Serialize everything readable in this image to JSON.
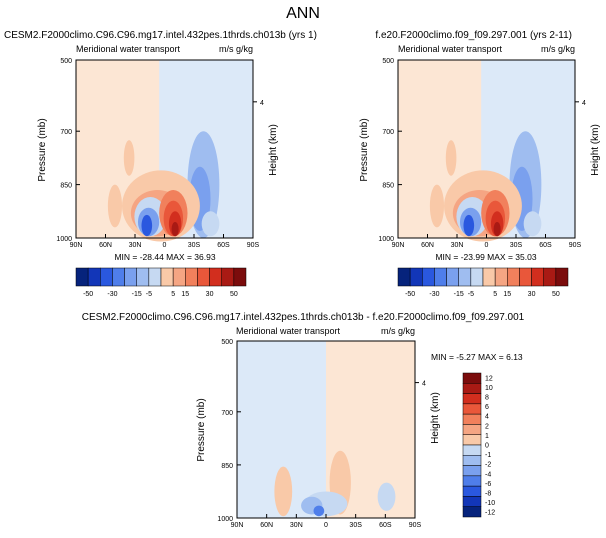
{
  "page_title": "ANN",
  "colors": {
    "bg_warm": "#fce6d4",
    "bg_cool": "#dce9f8",
    "red_scale": [
      "#f9c9a8",
      "#f5a583",
      "#f1805c",
      "#e9573a",
      "#d22e1e",
      "#a91a14",
      "#7b0c0c"
    ],
    "blue_scale": [
      "#c6d9f2",
      "#9fbdf0",
      "#7aa0ee",
      "#4f7eea",
      "#2a58df",
      "#1236b8",
      "#06237c"
    ]
  },
  "chart_data": [
    {
      "type": "heatmap",
      "title_left": "CESM2.F2000climo.C96.C96.mg17.intel.432pes.1thrds.ch013b (yrs 1)",
      "title_inner_left": "Meridional water transport",
      "title_inner_right": "m/s g/kg",
      "ylabel": "Pressure (mb)",
      "y2label": "Height (km)",
      "xticks": [
        "90N",
        "60N",
        "30N",
        "0",
        "30S",
        "60S",
        "90S"
      ],
      "yticks": [
        "500",
        "700",
        "850",
        "1000"
      ],
      "y2ticks": [
        "4"
      ],
      "ylim": [
        1000,
        500
      ],
      "stats": "MIN = -28.44   MAX = 36.93",
      "colorbar_labels": [
        "-50",
        "-30",
        "-15",
        "-5",
        "5",
        "15",
        "30",
        "50"
      ],
      "colorbar_levels": [
        -50,
        -40,
        -30,
        -20,
        -15,
        -10,
        -5,
        0,
        5,
        10,
        15,
        20,
        30,
        40,
        50
      ]
    },
    {
      "type": "heatmap",
      "title_left": "f.e20.F2000climo.f09_f09.297.001 (yrs 2-11)",
      "title_inner_left": "Meridional water transport",
      "title_inner_right": "m/s g/kg",
      "ylabel": "Pressure (mb)",
      "y2label": "Height (km)",
      "xticks": [
        "90N",
        "60N",
        "30N",
        "0",
        "30S",
        "60S",
        "90S"
      ],
      "yticks": [
        "500",
        "700",
        "850",
        "1000"
      ],
      "y2ticks": [
        "4"
      ],
      "ylim": [
        1000,
        500
      ],
      "stats": "MIN = -23.99   MAX = 35.03",
      "colorbar_labels": [
        "-50",
        "-30",
        "-15",
        "-5",
        "5",
        "15",
        "30",
        "50"
      ],
      "colorbar_levels": [
        -50,
        -40,
        -30,
        -20,
        -15,
        -10,
        -5,
        0,
        5,
        10,
        15,
        20,
        30,
        40,
        50
      ]
    },
    {
      "type": "heatmap",
      "title_left": "CESM2.F2000climo.C96.C96.mg17.intel.432pes.1thrds.ch013b - f.e20.F2000climo.f09_f09.297.001",
      "title_inner_left": "Meridional water transport",
      "title_inner_right": "m/s g/kg",
      "ylabel": "Pressure (mb)",
      "y2label": "Height (km)",
      "xticks": [
        "90N",
        "60N",
        "30N",
        "0",
        "30S",
        "60S",
        "90S"
      ],
      "yticks": [
        "500",
        "700",
        "850",
        "1000"
      ],
      "y2ticks": [
        "4"
      ],
      "ylim": [
        1000,
        500
      ],
      "stats": "MIN = -5.27   MAX =  6.13",
      "colorbar_labels": [
        "12",
        "10",
        "8",
        "6",
        "4",
        "2",
        "1",
        "0",
        "-1",
        "-2",
        "-4",
        "-6",
        "-8",
        "-10",
        "-12"
      ],
      "colorbar_levels": [
        12,
        10,
        8,
        6,
        4,
        2,
        1,
        0,
        -1,
        -2,
        -4,
        -6,
        -8,
        -10,
        -12
      ]
    }
  ]
}
